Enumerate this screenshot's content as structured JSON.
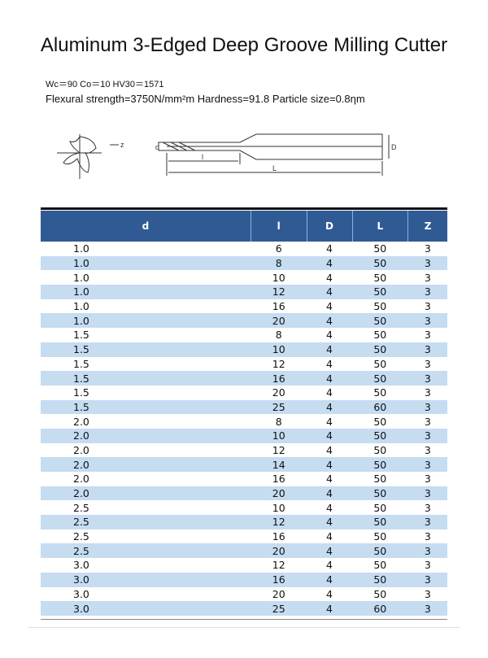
{
  "title": "Aluminum 3-Edged Deep Groove Milling Cutter",
  "spec_line1": "Wc＝90 Co＝10 HV30＝1571",
  "spec_line2": "Flexural strength=3750N/mm²m   Hardness=91.8  Particle size=0.8ηm",
  "diagram": {
    "labels": {
      "z": "z",
      "d": "d",
      "l": "l",
      "D": "D",
      "L": "L"
    }
  },
  "colors": {
    "header": "#2f5a94",
    "alt_row": "#c5dcf1"
  },
  "table": {
    "headers": [
      "d",
      "l",
      "D",
      "L",
      "Z"
    ],
    "rows": [
      [
        "1.0",
        "6",
        "4",
        "50",
        "3"
      ],
      [
        "1.0",
        "8",
        "4",
        "50",
        "3"
      ],
      [
        "1.0",
        "10",
        "4",
        "50",
        "3"
      ],
      [
        "1.0",
        "12",
        "4",
        "50",
        "3"
      ],
      [
        "1.0",
        "16",
        "4",
        "50",
        "3"
      ],
      [
        "1.0",
        "20",
        "4",
        "50",
        "3"
      ],
      [
        "1.5",
        "8",
        "4",
        "50",
        "3"
      ],
      [
        "1.5",
        "10",
        "4",
        "50",
        "3"
      ],
      [
        "1.5",
        "12",
        "4",
        "50",
        "3"
      ],
      [
        "1.5",
        "16",
        "4",
        "50",
        "3"
      ],
      [
        "1.5",
        "20",
        "4",
        "50",
        "3"
      ],
      [
        "1.5",
        "25",
        "4",
        "60",
        "3"
      ],
      [
        "2.0",
        "8",
        "4",
        "50",
        "3"
      ],
      [
        "2.0",
        "10",
        "4",
        "50",
        "3"
      ],
      [
        "2.0",
        "12",
        "4",
        "50",
        "3"
      ],
      [
        "2.0",
        "14",
        "4",
        "50",
        "3"
      ],
      [
        "2.0",
        "16",
        "4",
        "50",
        "3"
      ],
      [
        "2.0",
        "20",
        "4",
        "50",
        "3"
      ],
      [
        "2.5",
        "10",
        "4",
        "50",
        "3"
      ],
      [
        "2.5",
        "12",
        "4",
        "50",
        "3"
      ],
      [
        "2.5",
        "16",
        "4",
        "50",
        "3"
      ],
      [
        "2.5",
        "20",
        "4",
        "50",
        "3"
      ],
      [
        "3.0",
        "12",
        "4",
        "50",
        "3"
      ],
      [
        "3.0",
        "16",
        "4",
        "50",
        "3"
      ],
      [
        "3.0",
        "20",
        "4",
        "50",
        "3"
      ],
      [
        "3.0",
        "25",
        "4",
        "60",
        "3"
      ]
    ]
  }
}
